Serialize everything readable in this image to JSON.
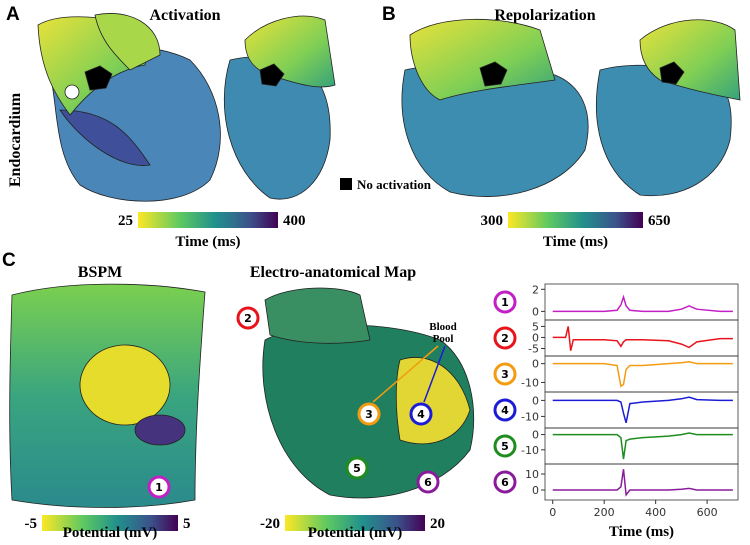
{
  "panels": [
    {
      "label": "A",
      "title": "Activation"
    },
    {
      "label": "B",
      "title": "Repolarization"
    },
    {
      "label": "C"
    }
  ],
  "row_label": "Endocardium",
  "legend_note": "No activation",
  "subtitles": [
    "BSPM",
    "Electro-anatomical Map"
  ],
  "annotation": [
    "Blood",
    "Pool"
  ],
  "colorbars": [
    {
      "ticks": [
        25,
        400
      ],
      "label": "Time (ms)"
    },
    {
      "ticks": [
        300,
        650
      ],
      "label": "Time (ms)"
    },
    {
      "ticks": [
        -5,
        5
      ],
      "label": "Potential (mV)"
    },
    {
      "ticks": [
        -20,
        20
      ],
      "label": "Potential (mV)"
    }
  ],
  "chart_data": {
    "type": "line",
    "x": [
      0,
      50,
      60,
      70,
      80,
      100,
      200,
      250,
      265,
      275,
      285,
      300,
      350,
      450,
      500,
      530,
      560,
      650,
      700
    ],
    "xlim": [
      -30,
      720
    ],
    "xticks": [
      0,
      200,
      400,
      600
    ],
    "xlabel": "Time (ms)",
    "series": [
      {
        "name": "1",
        "color": "#c21fc4",
        "ylim": [
          -0.6,
          2.3
        ],
        "yticks": [
          0,
          2
        ],
        "values": [
          0,
          0,
          0,
          0,
          0,
          0,
          0,
          0.1,
          0.6,
          1.3,
          0.5,
          0.1,
          0,
          0,
          0.2,
          0.5,
          0.2,
          0,
          0
        ]
      },
      {
        "name": "2",
        "color": "#e8141c",
        "ylim": [
          -7.5,
          7
        ],
        "yticks": [
          -5,
          0,
          5
        ],
        "values": [
          0,
          0,
          5,
          -6,
          -1,
          -1,
          -1,
          -1.5,
          -4,
          -2,
          -1,
          -1,
          -1,
          -1.5,
          -3,
          -4.5,
          -2,
          -0.5,
          -0.5
        ]
      },
      {
        "name": "3",
        "color": "#f39c12",
        "ylim": [
          -14,
          3
        ],
        "yticks": [
          -10,
          0
        ],
        "values": [
          0,
          0,
          0,
          0,
          0,
          0,
          0,
          -1,
          -12,
          -11,
          -3,
          -1,
          -1,
          0,
          0.5,
          1,
          0,
          0,
          0
        ]
      },
      {
        "name": "4",
        "color": "#1c1cd6",
        "ylim": [
          -16,
          4
        ],
        "yticks": [
          -10,
          0
        ],
        "values": [
          0,
          0,
          0,
          0,
          0,
          0,
          0,
          0,
          -1,
          -8,
          -14,
          -2,
          -1,
          0,
          1,
          2,
          0.5,
          0,
          0
        ]
      },
      {
        "name": "5",
        "color": "#1e8c1e",
        "ylim": [
          -18,
          3
        ],
        "yticks": [
          -10,
          0
        ],
        "values": [
          0,
          0,
          0,
          0,
          0,
          0,
          0,
          0,
          -2,
          -16,
          -4,
          -3,
          -2,
          -1,
          0,
          1,
          0,
          0,
          0
        ]
      },
      {
        "name": "6",
        "color": "#8a1c9c",
        "ylim": [
          -5,
          15
        ],
        "yticks": [
          0,
          10
        ],
        "values": [
          0,
          0,
          0,
          0,
          0,
          0,
          0,
          0,
          2,
          13,
          -3,
          0,
          0,
          0,
          0.5,
          1,
          0,
          0,
          0
        ]
      }
    ]
  }
}
